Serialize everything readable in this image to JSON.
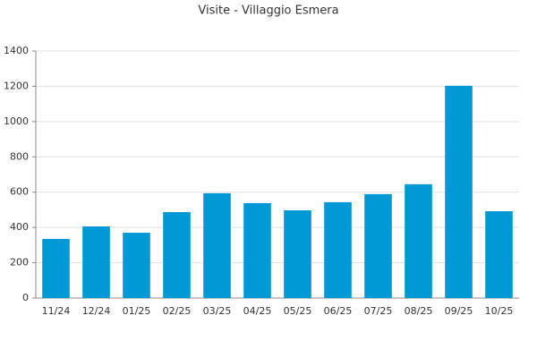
{
  "chart_data": {
    "type": "bar",
    "title": "Visite - Villaggio Esmera",
    "categories": [
      "11/24",
      "12/24",
      "01/25",
      "02/25",
      "03/25",
      "04/25",
      "05/25",
      "06/25",
      "07/25",
      "08/25",
      "09/25",
      "10/25"
    ],
    "values": [
      335,
      406,
      370,
      487,
      594,
      538,
      497,
      543,
      589,
      645,
      1203,
      492
    ],
    "color": "#0099d6",
    "ylim": [
      0,
      1400
    ],
    "yticks": [
      0,
      200,
      400,
      600,
      800,
      1000,
      1200,
      1400
    ],
    "grid": true
  }
}
